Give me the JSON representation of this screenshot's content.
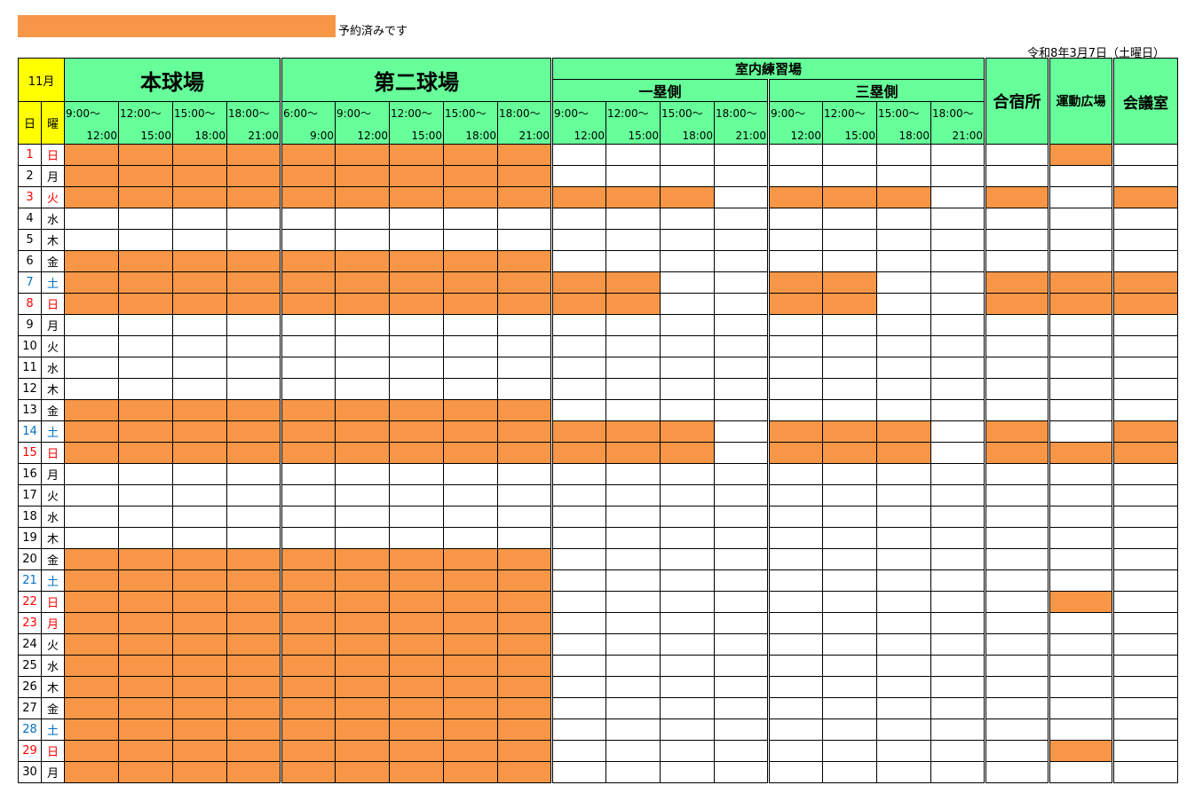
{
  "legend": {
    "label": "予約済みです",
    "color": "#f79646"
  },
  "date": "令和8年3月7日（土曜日）",
  "header": {
    "month": "11月",
    "day_label": "日",
    "weekday_label": "曜",
    "facilities": {
      "main": "本球場",
      "second": "第二球場",
      "indoor": "室内練習場",
      "first_base": "一塁側",
      "third_base": "三塁側",
      "lodging": "合宿所",
      "sports_field": "運動広場",
      "meeting_room": "会議室"
    },
    "times": [
      {
        "start": "9:00～",
        "end": "12:00"
      },
      {
        "start": "12:00～",
        "end": "15:00"
      },
      {
        "start": "15:00～",
        "end": "18:00"
      },
      {
        "start": "18:00～",
        "end": "21:00"
      },
      {
        "start": "6:00～",
        "end": "9:00"
      },
      {
        "start": "9:00～",
        "end": "12:00"
      },
      {
        "start": "12:00～",
        "end": "15:00"
      },
      {
        "start": "15:00～",
        "end": "18:00"
      },
      {
        "start": "18:00～",
        "end": "21:00"
      },
      {
        "start": "9:00～",
        "end": "12:00"
      },
      {
        "start": "12:00～",
        "end": "15:00"
      },
      {
        "start": "15:00～",
        "end": "18:00"
      },
      {
        "start": "18:00～",
        "end": "21:00"
      },
      {
        "start": "9:00～",
        "end": "12:00"
      },
      {
        "start": "12:00～",
        "end": "15:00"
      },
      {
        "start": "15:00～",
        "end": "18:00"
      },
      {
        "start": "18:00～",
        "end": "21:00"
      }
    ]
  },
  "colors": {
    "booked": "#f79646",
    "header": "#66ff99",
    "month": "#ffff00",
    "holiday": "#ff0000",
    "saturday": "#0070c0"
  },
  "rows": [
    {
      "day": "1",
      "wd": "日",
      "c": "red",
      "booked": [
        1,
        1,
        1,
        1,
        1,
        1,
        1,
        1,
        1,
        0,
        0,
        0,
        0,
        0,
        0,
        0,
        0,
        0,
        1,
        0
      ]
    },
    {
      "day": "2",
      "wd": "月",
      "c": "",
      "booked": [
        1,
        1,
        1,
        1,
        1,
        1,
        1,
        1,
        1,
        0,
        0,
        0,
        0,
        0,
        0,
        0,
        0,
        0,
        0,
        0
      ]
    },
    {
      "day": "3",
      "wd": "火",
      "c": "red",
      "booked": [
        1,
        1,
        1,
        1,
        1,
        1,
        1,
        1,
        1,
        1,
        1,
        1,
        0,
        1,
        1,
        1,
        0,
        1,
        0,
        1
      ]
    },
    {
      "day": "4",
      "wd": "水",
      "c": "",
      "booked": [
        0,
        0,
        0,
        0,
        0,
        0,
        0,
        0,
        0,
        0,
        0,
        0,
        0,
        0,
        0,
        0,
        0,
        0,
        0,
        0
      ]
    },
    {
      "day": "5",
      "wd": "木",
      "c": "",
      "booked": [
        0,
        0,
        0,
        0,
        0,
        0,
        0,
        0,
        0,
        0,
        0,
        0,
        0,
        0,
        0,
        0,
        0,
        0,
        0,
        0
      ]
    },
    {
      "day": "6",
      "wd": "金",
      "c": "",
      "booked": [
        1,
        1,
        1,
        1,
        1,
        1,
        1,
        1,
        1,
        0,
        0,
        0,
        0,
        0,
        0,
        0,
        0,
        0,
        0,
        0
      ]
    },
    {
      "day": "7",
      "wd": "土",
      "c": "blue",
      "booked": [
        1,
        1,
        1,
        1,
        1,
        1,
        1,
        1,
        1,
        1,
        1,
        0,
        0,
        1,
        1,
        0,
        0,
        1,
        1,
        1
      ]
    },
    {
      "day": "8",
      "wd": "日",
      "c": "red",
      "booked": [
        1,
        1,
        1,
        1,
        1,
        1,
        1,
        1,
        1,
        1,
        1,
        0,
        0,
        1,
        1,
        0,
        0,
        1,
        1,
        1
      ]
    },
    {
      "day": "9",
      "wd": "月",
      "c": "",
      "booked": [
        0,
        0,
        0,
        0,
        0,
        0,
        0,
        0,
        0,
        0,
        0,
        0,
        0,
        0,
        0,
        0,
        0,
        0,
        0,
        0
      ]
    },
    {
      "day": "10",
      "wd": "火",
      "c": "",
      "booked": [
        0,
        0,
        0,
        0,
        0,
        0,
        0,
        0,
        0,
        0,
        0,
        0,
        0,
        0,
        0,
        0,
        0,
        0,
        0,
        0
      ]
    },
    {
      "day": "11",
      "wd": "水",
      "c": "",
      "booked": [
        0,
        0,
        0,
        0,
        0,
        0,
        0,
        0,
        0,
        0,
        0,
        0,
        0,
        0,
        0,
        0,
        0,
        0,
        0,
        0
      ]
    },
    {
      "day": "12",
      "wd": "木",
      "c": "",
      "booked": [
        0,
        0,
        0,
        0,
        0,
        0,
        0,
        0,
        0,
        0,
        0,
        0,
        0,
        0,
        0,
        0,
        0,
        0,
        0,
        0
      ]
    },
    {
      "day": "13",
      "wd": "金",
      "c": "",
      "booked": [
        1,
        1,
        1,
        1,
        1,
        1,
        1,
        1,
        1,
        0,
        0,
        0,
        0,
        0,
        0,
        0,
        0,
        0,
        0,
        0
      ]
    },
    {
      "day": "14",
      "wd": "土",
      "c": "blue",
      "booked": [
        1,
        1,
        1,
        1,
        1,
        1,
        1,
        1,
        1,
        1,
        1,
        1,
        0,
        1,
        1,
        1,
        0,
        1,
        0,
        1
      ]
    },
    {
      "day": "15",
      "wd": "日",
      "c": "red",
      "booked": [
        1,
        1,
        1,
        1,
        1,
        1,
        1,
        1,
        1,
        1,
        1,
        1,
        0,
        1,
        1,
        1,
        0,
        1,
        1,
        1
      ]
    },
    {
      "day": "16",
      "wd": "月",
      "c": "",
      "booked": [
        0,
        0,
        0,
        0,
        0,
        0,
        0,
        0,
        0,
        0,
        0,
        0,
        0,
        0,
        0,
        0,
        0,
        0,
        0,
        0
      ]
    },
    {
      "day": "17",
      "wd": "火",
      "c": "",
      "booked": [
        0,
        0,
        0,
        0,
        0,
        0,
        0,
        0,
        0,
        0,
        0,
        0,
        0,
        0,
        0,
        0,
        0,
        0,
        0,
        0
      ]
    },
    {
      "day": "18",
      "wd": "水",
      "c": "",
      "booked": [
        0,
        0,
        0,
        0,
        0,
        0,
        0,
        0,
        0,
        0,
        0,
        0,
        0,
        0,
        0,
        0,
        0,
        0,
        0,
        0
      ]
    },
    {
      "day": "19",
      "wd": "木",
      "c": "",
      "booked": [
        0,
        0,
        0,
        0,
        0,
        0,
        0,
        0,
        0,
        0,
        0,
        0,
        0,
        0,
        0,
        0,
        0,
        0,
        0,
        0
      ]
    },
    {
      "day": "20",
      "wd": "金",
      "c": "",
      "booked": [
        1,
        1,
        1,
        1,
        1,
        1,
        1,
        1,
        1,
        0,
        0,
        0,
        0,
        0,
        0,
        0,
        0,
        0,
        0,
        0
      ]
    },
    {
      "day": "21",
      "wd": "土",
      "c": "blue",
      "booked": [
        1,
        1,
        1,
        1,
        1,
        1,
        1,
        1,
        1,
        0,
        0,
        0,
        0,
        0,
        0,
        0,
        0,
        0,
        0,
        0
      ]
    },
    {
      "day": "22",
      "wd": "日",
      "c": "red",
      "booked": [
        1,
        1,
        1,
        1,
        1,
        1,
        1,
        1,
        1,
        0,
        0,
        0,
        0,
        0,
        0,
        0,
        0,
        0,
        1,
        0
      ]
    },
    {
      "day": "23",
      "wd": "月",
      "c": "red",
      "booked": [
        1,
        1,
        1,
        1,
        1,
        1,
        1,
        1,
        1,
        0,
        0,
        0,
        0,
        0,
        0,
        0,
        0,
        0,
        0,
        0
      ]
    },
    {
      "day": "24",
      "wd": "火",
      "c": "",
      "booked": [
        1,
        1,
        1,
        1,
        1,
        1,
        1,
        1,
        1,
        0,
        0,
        0,
        0,
        0,
        0,
        0,
        0,
        0,
        0,
        0
      ]
    },
    {
      "day": "25",
      "wd": "水",
      "c": "",
      "booked": [
        1,
        1,
        1,
        1,
        1,
        1,
        1,
        1,
        1,
        0,
        0,
        0,
        0,
        0,
        0,
        0,
        0,
        0,
        0,
        0
      ]
    },
    {
      "day": "26",
      "wd": "木",
      "c": "",
      "booked": [
        1,
        1,
        1,
        1,
        1,
        1,
        1,
        1,
        1,
        0,
        0,
        0,
        0,
        0,
        0,
        0,
        0,
        0,
        0,
        0
      ]
    },
    {
      "day": "27",
      "wd": "金",
      "c": "",
      "booked": [
        1,
        1,
        1,
        1,
        1,
        1,
        1,
        1,
        1,
        0,
        0,
        0,
        0,
        0,
        0,
        0,
        0,
        0,
        0,
        0
      ]
    },
    {
      "day": "28",
      "wd": "土",
      "c": "blue",
      "booked": [
        1,
        1,
        1,
        1,
        1,
        1,
        1,
        1,
        1,
        0,
        0,
        0,
        0,
        0,
        0,
        0,
        0,
        0,
        0,
        0
      ]
    },
    {
      "day": "29",
      "wd": "日",
      "c": "red",
      "booked": [
        1,
        1,
        1,
        1,
        1,
        1,
        1,
        1,
        1,
        0,
        0,
        0,
        0,
        0,
        0,
        0,
        0,
        0,
        1,
        0
      ]
    },
    {
      "day": "30",
      "wd": "月",
      "c": "",
      "booked": [
        1,
        1,
        1,
        1,
        1,
        1,
        1,
        1,
        1,
        0,
        0,
        0,
        0,
        0,
        0,
        0,
        0,
        0,
        0,
        0
      ]
    }
  ]
}
